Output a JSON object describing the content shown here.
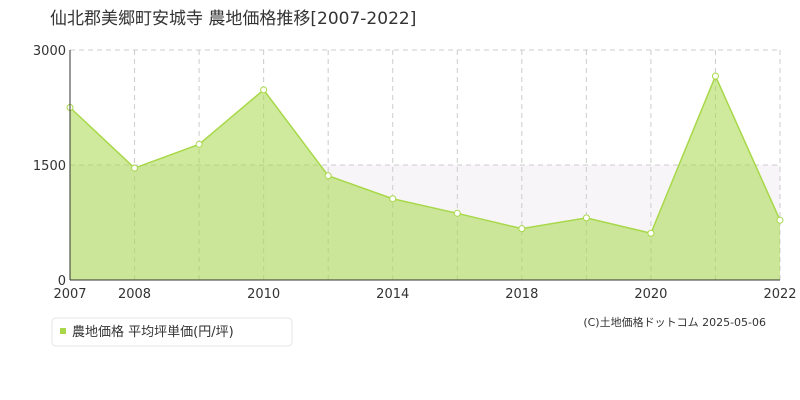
{
  "chart_data": {
    "type": "area",
    "title": "仙北郡美郷町安城寺 農地価格推移[2007-2022]",
    "categories": [
      "2007",
      "2008",
      null,
      "2010",
      null,
      "2014",
      null,
      "2018",
      null,
      "2020",
      null,
      "2022"
    ],
    "series": [
      {
        "name": "農地価格 平均坪単価(円/坪)",
        "color": "#a8d84a",
        "values": [
          2250,
          1460,
          1770,
          2480,
          1360,
          1060,
          870,
          670,
          810,
          610,
          2660,
          780
        ]
      }
    ],
    "ylim": [
      0,
      3000
    ],
    "yticks": [
      0,
      1500,
      3000
    ],
    "grid": true,
    "copyright": "(C)土地価格ドットコム 2025-05-06"
  }
}
